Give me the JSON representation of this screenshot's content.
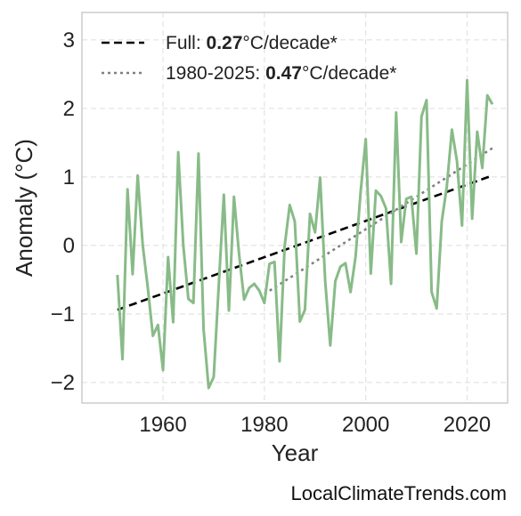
{
  "chart_data": {
    "type": "line",
    "title": "",
    "xlabel": "Year",
    "ylabel": "Anomaly (°C)",
    "xlim": [
      1944,
      2028
    ],
    "ylim": [
      -2.3,
      3.4
    ],
    "xticks": [
      1960,
      1980,
      2000,
      2020
    ],
    "yticks": [
      -2,
      -1,
      0,
      1,
      2,
      3
    ],
    "ytick_labels": [
      "−2",
      "−1",
      "0",
      "1",
      "2",
      "3"
    ],
    "grid": true,
    "legend_position": "top-left",
    "series": [
      {
        "name": "",
        "color": "#88bb88",
        "x": [
          1951,
          1952,
          1953,
          1954,
          1955,
          1956,
          1957,
          1958,
          1959,
          1960,
          1961,
          1962,
          1963,
          1964,
          1965,
          1966,
          1967,
          1968,
          1969,
          1970,
          1971,
          1972,
          1973,
          1974,
          1975,
          1976,
          1977,
          1978,
          1979,
          1980,
          1981,
          1982,
          1983,
          1984,
          1985,
          1986,
          1987,
          1988,
          1989,
          1990,
          1991,
          1992,
          1993,
          1994,
          1995,
          1996,
          1997,
          1998,
          1999,
          2000,
          2001,
          2002,
          2003,
          2004,
          2005,
          2006,
          2007,
          2008,
          2009,
          2010,
          2011,
          2012,
          2013,
          2014,
          2015,
          2016,
          2017,
          2018,
          2019,
          2020,
          2021,
          2022,
          2023,
          2024,
          2025
        ],
        "y": [
          -0.43,
          -1.66,
          0.82,
          -0.42,
          1.02,
          0.0,
          -0.62,
          -1.32,
          -1.16,
          -1.82,
          -0.17,
          -1.12,
          1.36,
          0.0,
          -0.78,
          -0.84,
          1.34,
          -1.22,
          -2.08,
          -1.92,
          -0.58,
          0.74,
          -0.95,
          0.71,
          -0.12,
          -0.79,
          -0.62,
          -0.56,
          -0.66,
          -0.84,
          -0.27,
          -0.24,
          -1.69,
          -0.01,
          0.59,
          0.35,
          -1.11,
          -0.94,
          0.46,
          0.19,
          0.99,
          -0.52,
          -1.46,
          -0.52,
          -0.31,
          -0.26,
          -0.68,
          -0.16,
          0.79,
          1.55,
          -0.41,
          0.8,
          0.72,
          0.54,
          -0.56,
          1.94,
          0.05,
          0.68,
          0.71,
          -0.12,
          1.88,
          2.12,
          -0.68,
          -0.92,
          0.35,
          0.86,
          1.69,
          1.23,
          0.29,
          2.41,
          0.39,
          1.66,
          1.13,
          2.19,
          2.06
        ]
      }
    ],
    "trend_lines": [
      {
        "label_prefix": "Full: ",
        "label_value": "0.27",
        "label_suffix": "°C/decade*",
        "style": "dashed",
        "color": "#000000",
        "x": [
          1951,
          2025
        ],
        "y": [
          -0.94,
          1.02
        ]
      },
      {
        "label_prefix": "1980-2025: ",
        "label_value": "0.47",
        "label_suffix": "°C/decade*",
        "style": "dotted",
        "color": "#808080",
        "x": [
          1980,
          2025
        ],
        "y": [
          -0.71,
          1.42
        ]
      }
    ]
  },
  "source_text": "LocalClimateTrends.com"
}
